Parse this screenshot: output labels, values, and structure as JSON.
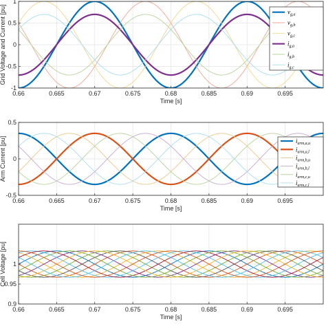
{
  "chart_data": [
    {
      "type": "line",
      "xlabel": "Time [s]",
      "ylabel": "Grid Voltage and Current [pu]",
      "xlim": [
        0.66,
        0.7
      ],
      "ylim": [
        -1,
        1
      ],
      "xticks": [
        0.66,
        0.665,
        0.67,
        0.675,
        0.68,
        0.685,
        0.69,
        0.695
      ],
      "xtick_labels": [
        "0.66",
        "0.665",
        "0.67",
        "0.675",
        "0.68",
        "0.685",
        "0.69",
        "0.695"
      ],
      "yticks": [
        -1,
        -0.5,
        0,
        0.5,
        1
      ],
      "ytick_labels": [
        "-1",
        "-0.5",
        "0",
        "0.5",
        "1"
      ],
      "grid": true,
      "legend_position": "top-right",
      "frequency_hz": 50,
      "series": [
        {
          "name": "v",
          "sub": "g,a",
          "color": "#0072BD",
          "width": 2.2,
          "amplitude": 1.0,
          "offset": 0,
          "phase_deg": -90
        },
        {
          "name": "v",
          "sub": "g,b",
          "color": "#F2A594",
          "width": 0.9,
          "amplitude": 1.0,
          "offset": 0,
          "phase_deg": 150
        },
        {
          "name": "v",
          "sub": "g,c",
          "color": "#F5D58A",
          "width": 0.9,
          "amplitude": 1.0,
          "offset": 0,
          "phase_deg": 30
        },
        {
          "name": "i",
          "sub": "g,a",
          "color": "#7E2F8E",
          "width": 2.2,
          "amplitude": 0.7,
          "offset": 0,
          "phase_deg": -90
        },
        {
          "name": "i",
          "sub": "g,b",
          "color": "#B7D39A",
          "width": 0.9,
          "amplitude": 0.7,
          "offset": 0,
          "phase_deg": 150
        },
        {
          "name": "i",
          "sub": "g,c",
          "color": "#A8DDF0",
          "width": 0.9,
          "amplitude": 0.7,
          "offset": 0,
          "phase_deg": 30
        }
      ]
    },
    {
      "type": "line",
      "xlabel": "Time [s]",
      "ylabel": "Arm Current [pu]",
      "xlim": [
        0.66,
        0.7
      ],
      "ylim": [
        -0.5,
        0.5
      ],
      "xticks": [
        0.66,
        0.665,
        0.67,
        0.675,
        0.68,
        0.685,
        0.69,
        0.695
      ],
      "xtick_labels": [
        "0.66",
        "0.665",
        "0.67",
        "0.675",
        "0.68",
        "0.685",
        "0.69",
        "0.695"
      ],
      "yticks": [
        -0.5,
        0,
        0.5
      ],
      "ytick_labels": [
        "-0.5",
        "0",
        "0.5"
      ],
      "grid": true,
      "legend_position": "top-right",
      "frequency_hz": 50,
      "series": [
        {
          "name": "i",
          "sub": "arm,a,u",
          "color": "#0072BD",
          "width": 2.2,
          "amplitude": 0.35,
          "offset": 0,
          "phase_deg": 90
        },
        {
          "name": "i",
          "sub": "arm,a,l",
          "color": "#D95319",
          "width": 2.2,
          "amplitude": 0.35,
          "offset": 0,
          "phase_deg": -90
        },
        {
          "name": "i",
          "sub": "arm,b,u",
          "color": "#EDC68A",
          "width": 0.9,
          "amplitude": 0.35,
          "offset": 0,
          "phase_deg": -30
        },
        {
          "name": "i",
          "sub": "arm,b,l",
          "color": "#C7A6D4",
          "width": 0.9,
          "amplitude": 0.35,
          "offset": 0,
          "phase_deg": 150
        },
        {
          "name": "i",
          "sub": "arm,c,u",
          "color": "#B7D39A",
          "width": 0.9,
          "amplitude": 0.35,
          "offset": 0,
          "phase_deg": -150
        },
        {
          "name": "i",
          "sub": "arm,c,l",
          "color": "#A8DDF0",
          "width": 0.9,
          "amplitude": 0.35,
          "offset": 0,
          "phase_deg": 30
        }
      ]
    },
    {
      "type": "line",
      "xlabel": "Time [s]",
      "ylabel": "Cell Voltage [pu]",
      "xlim": [
        0.66,
        0.7
      ],
      "ylim": [
        0.9,
        1.1
      ],
      "xticks": [
        0.66,
        0.665,
        0.67,
        0.675,
        0.68,
        0.685,
        0.69,
        0.695
      ],
      "xtick_labels": [
        "0.66",
        "0.665",
        "0.67",
        "0.675",
        "0.68",
        "0.685",
        "0.69",
        "0.695"
      ],
      "yticks": [
        0.9,
        0.95,
        1
      ],
      "ytick_labels": [
        "0.9",
        "0.95",
        "1"
      ],
      "grid": true,
      "frequency_hz": 50,
      "series": [
        {
          "color": "#0072BD",
          "width": 0.9,
          "amplitude": 0.033,
          "offset": 1.0,
          "phase_deg": 0
        },
        {
          "color": "#D95319",
          "width": 0.9,
          "amplitude": 0.033,
          "offset": 1.0,
          "phase_deg": 180
        },
        {
          "color": "#EDB120",
          "width": 0.9,
          "amplitude": 0.033,
          "offset": 1.0,
          "phase_deg": 120
        },
        {
          "color": "#7E2F8E",
          "width": 0.9,
          "amplitude": 0.033,
          "offset": 1.0,
          "phase_deg": -60
        },
        {
          "color": "#77AC30",
          "width": 0.9,
          "amplitude": 0.033,
          "offset": 1.0,
          "phase_deg": 240
        },
        {
          "color": "#4DBEEE",
          "width": 0.9,
          "amplitude": 0.033,
          "offset": 1.0,
          "phase_deg": 60
        },
        {
          "color": "#A2142F",
          "width": 0.9,
          "amplitude": 0.033,
          "offset": 1.0,
          "phase_deg": 30
        },
        {
          "color": "#555555",
          "width": 0.9,
          "amplitude": 0.033,
          "offset": 1.0,
          "phase_deg": 210
        },
        {
          "color": "#4DBEEE",
          "width": 0.9,
          "amplitude": 0.033,
          "offset": 1.0,
          "phase_deg": 150
        },
        {
          "color": "#77AC30",
          "width": 0.9,
          "amplitude": 0.033,
          "offset": 1.0,
          "phase_deg": -30
        },
        {
          "color": "#EDB120",
          "width": 0.9,
          "amplitude": 0.033,
          "offset": 1.0,
          "phase_deg": 270
        },
        {
          "color": "#D95319",
          "width": 0.9,
          "amplitude": 0.033,
          "offset": 1.0,
          "phase_deg": 90
        }
      ]
    }
  ]
}
